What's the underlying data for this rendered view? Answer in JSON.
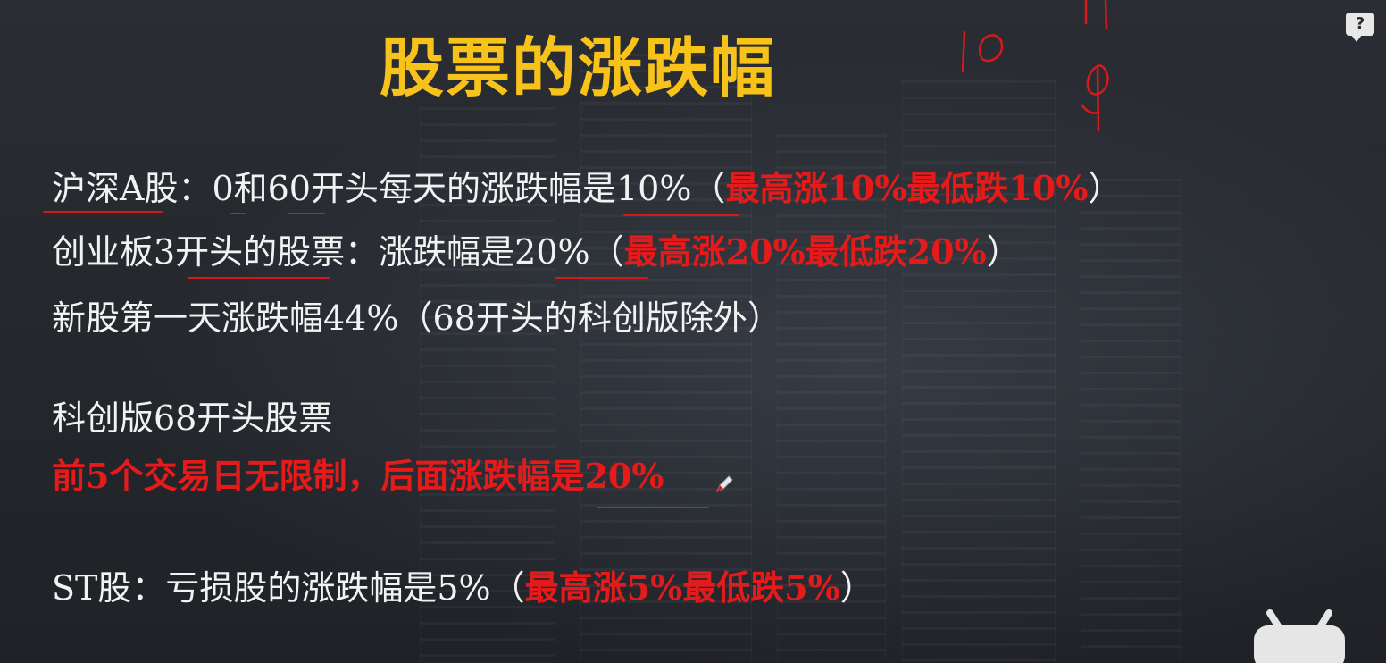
{
  "slide": {
    "title": "股票的涨跌幅",
    "rows": [
      {
        "text": "沪深A股：0和60开头每天的涨跌幅是10%（",
        "highlight": "最高涨10%最低跌10%",
        "suffix": "）"
      },
      {
        "text": "创业板3开头的股票：涨跌幅是20%（",
        "highlight": "最高涨20%最低跌20%",
        "suffix": "）"
      },
      {
        "text": "新股第一天涨跌幅44%（68开头的科创版除外）"
      },
      {
        "text": "科创版68开头股票"
      },
      {
        "highlight": "前5个交易日无限制，后面涨跌幅是20%"
      },
      {
        "text": "ST股：亏损股的涨跌幅是5%（",
        "highlight": "最高涨5%最低跌5%",
        "suffix": "）"
      }
    ]
  },
  "handwriting": {
    "numbers": [
      "10",
      "11"
    ]
  },
  "colors": {
    "title": "#f7c21a",
    "highlight": "#e51b1b",
    "text": "#f2f2f2",
    "background": "#24272d"
  },
  "icons": {
    "help": "question-mark-icon",
    "pen": "pen-cursor-icon",
    "tv": "tv-logo-icon"
  }
}
